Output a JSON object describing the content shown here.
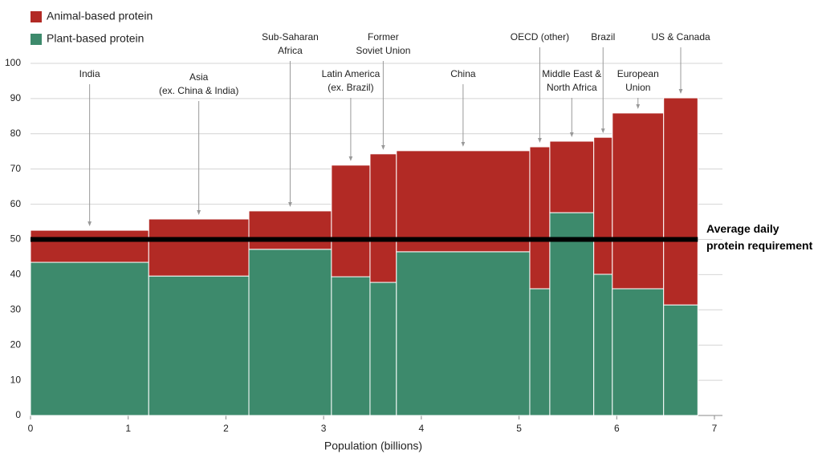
{
  "chart_data": {
    "type": "mekko",
    "xlabel": "Population (billions)",
    "categories": [
      [
        "India"
      ],
      [
        "Asia",
        "(ex. China & India)"
      ],
      [
        "Sub-Saharan",
        "Africa"
      ],
      [
        "Latin America",
        "(ex. Brazil)"
      ],
      [
        "Former",
        "Soviet Union"
      ],
      [
        "China"
      ],
      [
        "OECD (other)"
      ],
      [
        "Middle East &",
        "North Africa"
      ],
      [
        "Brazil"
      ],
      [
        "European",
        "Union"
      ],
      [
        "US & Canada"
      ]
    ],
    "widths": [
      1.21,
      1.025,
      0.845,
      0.395,
      0.27,
      1.365,
      0.205,
      0.45,
      0.19,
      0.525,
      0.35
    ],
    "series": [
      {
        "name": "Plant-based protein",
        "color": "#3d8a6c",
        "values": [
          43.5,
          39.6,
          47.2,
          39.4,
          37.8,
          46.5,
          36.0,
          57.6,
          40.1,
          36.0,
          31.4
        ]
      },
      {
        "name": "Animal-based protein",
        "color": "#b22a25",
        "values": [
          9.1,
          16.2,
          10.9,
          31.7,
          36.5,
          28.7,
          40.3,
          20.3,
          38.9,
          49.9,
          58.8
        ]
      }
    ],
    "reference": {
      "value": 50,
      "label": [
        "Average daily",
        "protein requirement"
      ],
      "color": "#000000"
    },
    "xlim": [
      0,
      7
    ],
    "xticks": [
      0,
      1,
      2,
      3,
      4,
      5,
      6,
      7
    ],
    "ylim": [
      0,
      100
    ],
    "yticks": [
      0,
      10,
      20,
      30,
      40,
      50,
      60,
      70,
      80,
      90,
      100
    ],
    "grid": true
  }
}
